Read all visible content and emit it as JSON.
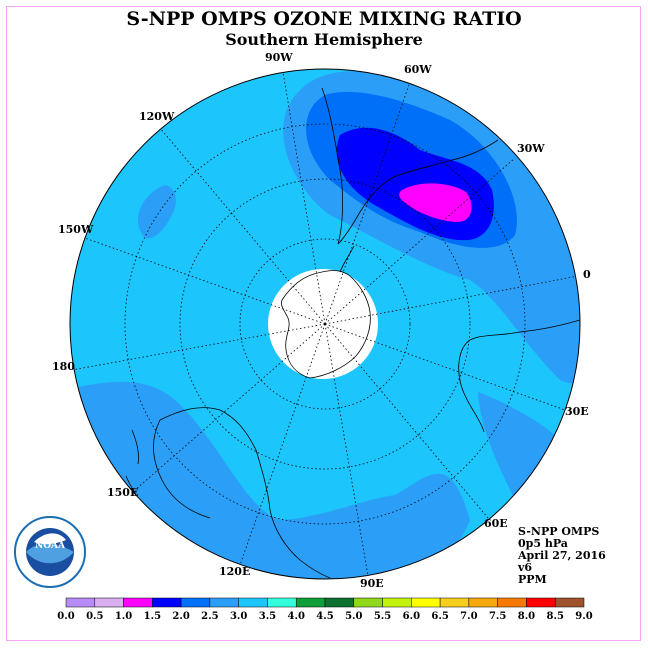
{
  "title": "S-NPP OMPS OZONE MIXING RATIO",
  "subtitle": "Southern Hemisphere",
  "longitude_labels": [
    {
      "key": "90w",
      "text": "90W"
    },
    {
      "key": "60w",
      "text": "60W"
    },
    {
      "key": "30w",
      "text": "30W"
    },
    {
      "key": "120w",
      "text": "120W"
    },
    {
      "key": "150w",
      "text": "150W"
    },
    {
      "key": "0",
      "text": "0"
    },
    {
      "key": "180",
      "text": "180"
    },
    {
      "key": "30e",
      "text": "30E"
    },
    {
      "key": "150e",
      "text": "150E"
    },
    {
      "key": "60e",
      "text": "60E"
    },
    {
      "key": "120e",
      "text": "120E"
    },
    {
      "key": "90e",
      "text": "90E"
    }
  ],
  "info": {
    "instrument": "S-NPP OMPS",
    "pressure": "0p5 hPa",
    "date": "April 27, 2016",
    "version": "v6",
    "units": "PPM"
  },
  "logo_text": "NOAA",
  "colorbar": {
    "ticks": [
      "0.0",
      "0.5",
      "1.0",
      "1.5",
      "2.0",
      "2.5",
      "3.0",
      "3.5",
      "4.0",
      "4.5",
      "5.0",
      "5.5",
      "6.0",
      "6.5",
      "7.0",
      "7.5",
      "8.0",
      "8.5",
      "9.0"
    ],
    "colors": [
      "#b88cf8",
      "#d8b0f0",
      "#ff00ff",
      "#0000ff",
      "#0070f8",
      "#2b9ff8",
      "#1cc5fc",
      "#33ffdd",
      "#0f9e38",
      "#0b7030",
      "#8fd81a",
      "#c2f20c",
      "#ffff00",
      "#f5cf1c",
      "#f5a90c",
      "#f77a00",
      "#ff0000",
      "#a0522d"
    ]
  },
  "map": {
    "background_color": "#1cc5fc",
    "level_colors": {
      "2.5": "#2b9ff8",
      "2.0": "#0070f8",
      "1.5": "#0000ff",
      "1.0": "#ff00ff"
    },
    "no_data_color": "#ffffff"
  }
}
